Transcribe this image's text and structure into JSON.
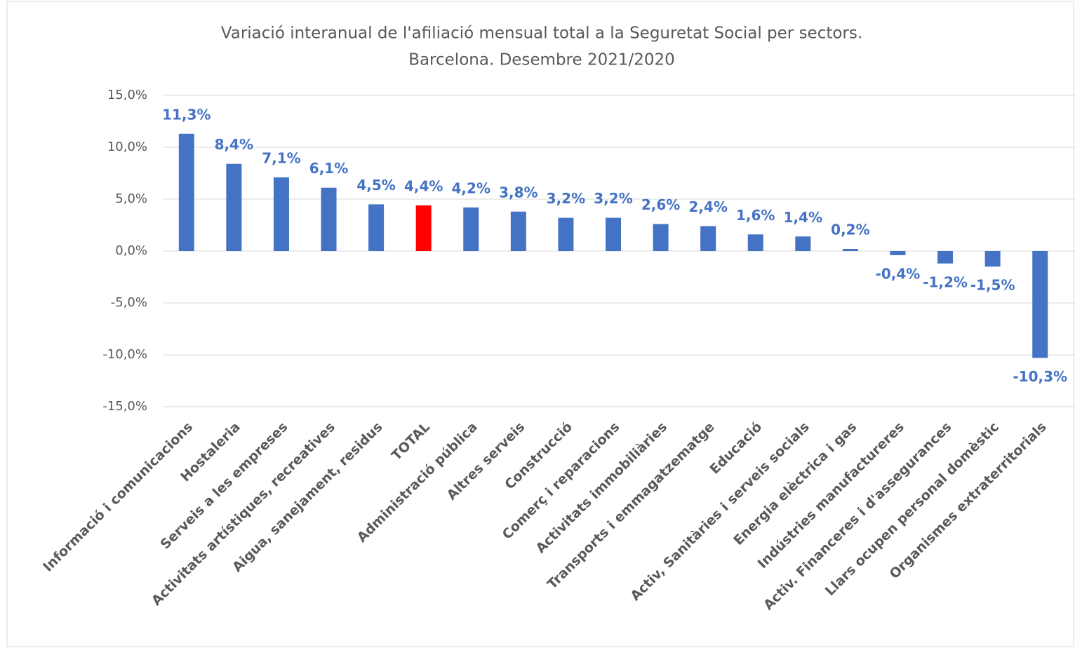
{
  "chart_data": {
    "type": "bar",
    "title": "Variació interanual de l'afiliació  mensual total a la Seguretat Social per sectors.",
    "subtitle": "Barcelona. Desembre 2021/2020",
    "categories": [
      "Informació i comunicacions",
      "Hostaleria",
      "Serveis a les empreses",
      "Activitats artístiques, recreatives",
      "Aigua, sanejament, residus",
      "TOTAL",
      "Administració pública",
      "Altres serveis",
      "Construcció",
      "Comerç i reparacions",
      "Activitats immobiliàries",
      "Transports i emmagatzematge",
      "Educació",
      "Activ, Sanitàries i serveis socials",
      "Energia elèctrica i gas",
      "Indústries manufactureres",
      "Activ. Financeres i d'assegurances",
      "Llars ocupen personal domèstic",
      "Organismes extraterritorials"
    ],
    "values": [
      11.3,
      8.4,
      7.1,
      6.1,
      4.5,
      4.4,
      4.2,
      3.8,
      3.2,
      3.2,
      2.6,
      2.4,
      1.6,
      1.4,
      0.2,
      -0.4,
      -1.2,
      -1.5,
      -10.3
    ],
    "value_labels": [
      "11,3%",
      "8,4%",
      "7,1%",
      "6,1%",
      "4,5%",
      "4,4%",
      "4,2%",
      "3,8%",
      "3,2%",
      "3,2%",
      "2,6%",
      "2,4%",
      "1,6%",
      "1,4%",
      "0,2%",
      "-0,4%",
      "-1,2%",
      "-1,5%",
      "-10,3%"
    ],
    "colors": [
      "#4472c4",
      "#4472c4",
      "#4472c4",
      "#4472c4",
      "#4472c4",
      "#ff0000",
      "#4472c4",
      "#4472c4",
      "#4472c4",
      "#4472c4",
      "#4472c4",
      "#4472c4",
      "#4472c4",
      "#4472c4",
      "#4472c4",
      "#4472c4",
      "#4472c4",
      "#4472c4",
      "#4472c4"
    ],
    "label_color": "#4472c4",
    "ylim": [
      -15,
      15
    ],
    "yticks": [
      {
        "value": -15,
        "label": "-15,0%"
      },
      {
        "value": -10,
        "label": "-10,0%"
      },
      {
        "value": -5,
        "label": "-5,0%"
      },
      {
        "value": 0,
        "label": "0,0%"
      },
      {
        "value": 5,
        "label": "5,0%"
      },
      {
        "value": 10,
        "label": "10,0%"
      },
      {
        "value": 15,
        "label": "15,0%"
      }
    ],
    "grid": true
  }
}
